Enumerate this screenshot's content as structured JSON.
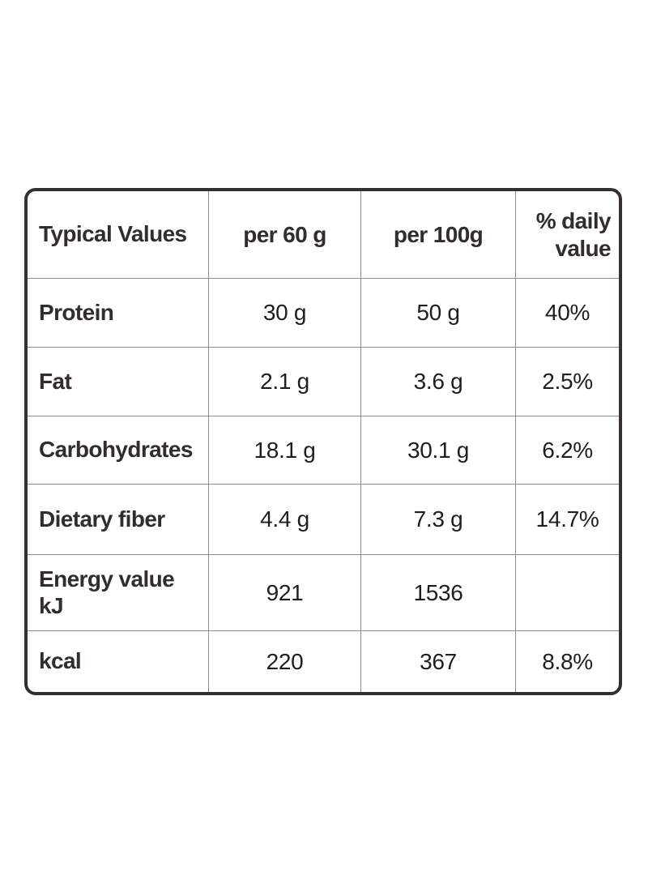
{
  "document": {
    "kind": "nutrition-information-table",
    "colors": {
      "background": "#ffffff",
      "outer_border": "#362f31",
      "grid_line": "#8d8d8d",
      "label_text": "#332c2e",
      "value_text": "#211d1e"
    },
    "header": {
      "col_typical_values": "Typical Values",
      "col_per_60g": "per 60 g",
      "col_per_100g": "per 100g",
      "col_daily_value": "% daily\nvalue"
    },
    "rows": [
      {
        "label": "Protein",
        "per60": "30 g",
        "per100": "50 g",
        "daily": "40%"
      },
      {
        "label": "Fat",
        "per60": "2.1 g",
        "per100": "3.6 g",
        "daily": "2.5%"
      },
      {
        "label": "Carbohydrates",
        "per60": "18.1 g",
        "per100": "30.1 g",
        "daily": "6.2%"
      },
      {
        "label": "Dietary fiber",
        "per60": "4.4 g",
        "per100": "7.3 g",
        "daily": "14.7%"
      },
      {
        "label": "Energy value\nkJ",
        "per60": "921",
        "per100": "1536",
        "daily": ""
      },
      {
        "label": "kcal",
        "per60": "220",
        "per100": "367",
        "daily": "8.8%"
      }
    ]
  }
}
